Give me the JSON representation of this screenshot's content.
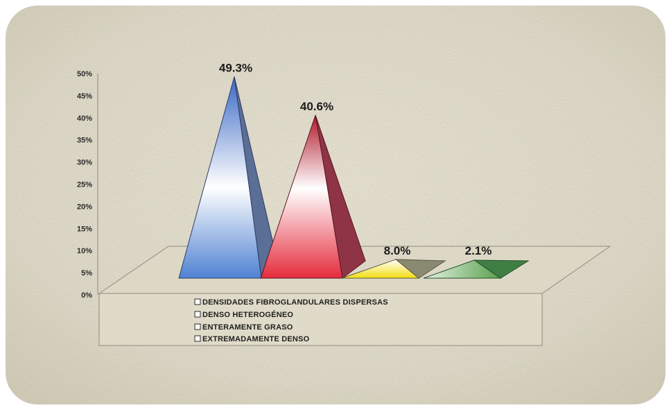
{
  "chart_data": {
    "type": "bar",
    "shape": "3d-pyramid",
    "categories": [
      "DENSIDADES FIBROGLANDULARES DISPERSAS",
      "DENSO HETEROGÉNEO",
      "ENTERAMENTE GRASO",
      "EXTREMADAMENTE DENSO"
    ],
    "values": [
      49.3,
      40.6,
      8.0,
      2.1
    ],
    "data_labels": [
      "49.3%",
      "40.6%",
      "8.0%",
      "2.1%"
    ],
    "ylim": [
      0,
      50
    ],
    "yticks": [
      "0%",
      "5%",
      "10%",
      "15%",
      "20%",
      "25%",
      "30%",
      "35%",
      "40%",
      "45%",
      "50%"
    ],
    "grid": false,
    "legend": {
      "placement": "bottom",
      "entries": [
        "DENSIDADES FIBROGLANDULARES DISPERSAS",
        "DENSO HETEROGÉNEO",
        "ENTERAMENTE GRASO",
        "EXTREMADAMENTE DENSO"
      ]
    },
    "colors": [
      "#4f7fd0",
      "#e03040",
      "#f4e020",
      "#5aa050"
    ],
    "background": "#e4dfce"
  }
}
